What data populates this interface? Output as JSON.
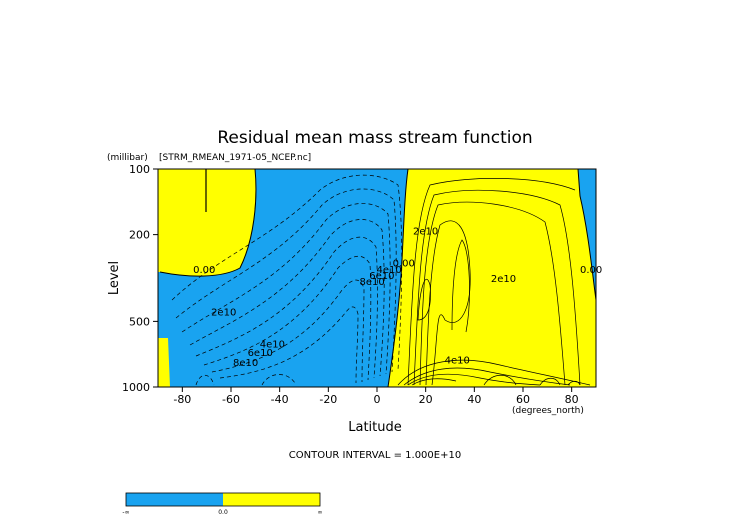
{
  "chart_data": {
    "type": "heatmap",
    "title": "Residual mean mass stream function",
    "source_label": "[STRM_RMEAN_1971-05_NCEP.nc]",
    "y_unit": "(millibar)",
    "x_unit": "(degrees_north)",
    "xlabel": "Latitude",
    "ylabel": "Level",
    "xlim": [
      -90,
      90
    ],
    "ylim": [
      1000,
      100
    ],
    "y_scale": "log",
    "x_ticks": [
      -80,
      -60,
      -40,
      -20,
      0,
      20,
      40,
      60,
      80
    ],
    "y_ticks": [
      1000,
      500,
      200,
      100
    ],
    "contour_interval_label": "CONTOUR INTERVAL = 1.000E+10",
    "contour_labels": [
      {
        "text": "0.00",
        "lat": -71,
        "level": 300
      },
      {
        "text": "2e10",
        "lat": -63,
        "level": 470
      },
      {
        "text": "4e10",
        "lat": -43,
        "level": 660
      },
      {
        "text": "6e10",
        "lat": -48,
        "level": 720
      },
      {
        "text": "8e10",
        "lat": -54,
        "level": 800
      },
      {
        "text": "8e10",
        "lat": -2,
        "level": 340
      },
      {
        "text": "6e10",
        "lat": 2,
        "level": 320
      },
      {
        "text": "4e10",
        "lat": 5,
        "level": 300
      },
      {
        "text": "0.00",
        "lat": 11,
        "level": 280
      },
      {
        "text": "2e10",
        "lat": 20,
        "level": 200
      },
      {
        "text": "2e10",
        "lat": 52,
        "level": 330
      },
      {
        "text": "4e10",
        "lat": 33,
        "level": 780
      },
      {
        "text": "0.00",
        "lat": 88,
        "level": 300
      }
    ],
    "colorbar": {
      "colors": [
        "#19a3f0",
        "#ffff00"
      ],
      "labels": [
        "-∞",
        "0.0",
        "∞"
      ]
    }
  }
}
